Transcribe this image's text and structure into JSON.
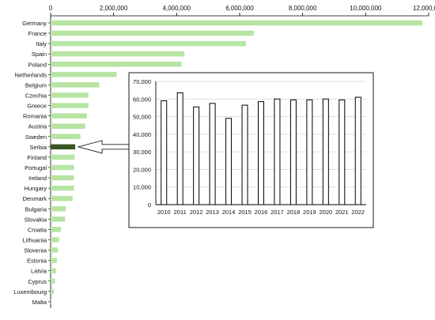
{
  "chart_data": [
    {
      "type": "bar",
      "orientation": "horizontal",
      "x_ticks": [
        "0",
        "2,000,000",
        "4,000,000",
        "6,000,000",
        "8,000,000",
        "10,000,000",
        "12,000,000"
      ],
      "xlim": [
        0,
        12000000
      ],
      "grid": false,
      "bar_color": "#b7e4a3",
      "highlight_color": "#385723",
      "highlight_category": "Serbia",
      "categories": [
        "Germany",
        "France",
        "Italy",
        "Spain",
        "Poland",
        "Netherlands",
        "Belgium",
        "Czechia",
        "Greece",
        "Romania",
        "Austria",
        "Sweden",
        "Serbia",
        "Finland",
        "Portugal",
        "Ireland",
        "Hungary",
        "Denmark",
        "Bulgaria",
        "Slovakia",
        "Croatia",
        "Lithuania",
        "Slovenia",
        "Estonia",
        "Latvia",
        "Cyprus",
        "Luxembourg",
        "Malta"
      ],
      "values": [
        11800000,
        6450000,
        6200000,
        4250000,
        4150000,
        2100000,
        1550000,
        1200000,
        1200000,
        1150000,
        1100000,
        950000,
        780000,
        760000,
        740000,
        740000,
        740000,
        700000,
        480000,
        460000,
        330000,
        270000,
        230000,
        200000,
        170000,
        140000,
        100000,
        30000
      ]
    },
    {
      "type": "bar",
      "orientation": "vertical",
      "inset": true,
      "inset_for": "Serbia",
      "categories": [
        "2010",
        "2011",
        "2012",
        "2013",
        "2014",
        "2015",
        "2016",
        "2017",
        "2018",
        "2019",
        "2020",
        "2021",
        "2022"
      ],
      "values": [
        59000,
        63500,
        55500,
        57500,
        49000,
        56500,
        58500,
        60000,
        59500,
        59500,
        60000,
        59500,
        61000
      ],
      "y_ticks": [
        "0",
        "10,000",
        "20,000",
        "30,000",
        "40,000",
        "50,000",
        "60,000",
        "70,000"
      ],
      "ylim": [
        0,
        70000
      ],
      "grid": true,
      "bar_fill": "#ffffff",
      "bar_stroke": "#000000"
    }
  ]
}
